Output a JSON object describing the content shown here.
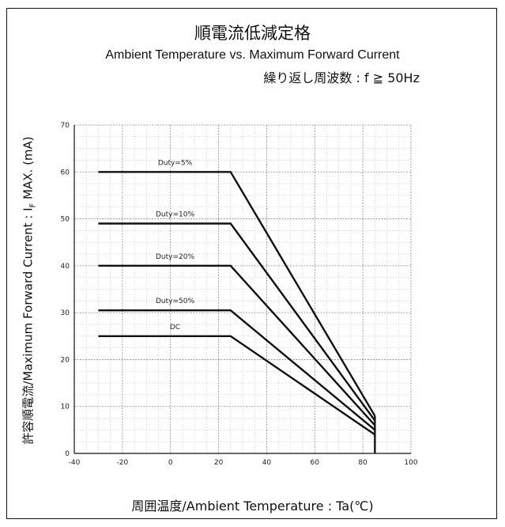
{
  "header": {
    "title_jp": "順電流低減定格",
    "title_en": "Ambient Temperature vs. Maximum Forward Current",
    "condition": "繰り返し周波数 : f ≧ 50Hz"
  },
  "chart_data": {
    "type": "line",
    "title": "順電流低減定格",
    "subtitle": "Ambient Temperature vs. Maximum Forward Current",
    "xlabel": "周囲温度/Ambient Temperature : Ta(℃)",
    "ylabel_prefix": "許容順電流/Maximum Forward Current : I",
    "ylabel_sub": "F",
    "ylabel_suffix": " MAX. (mA)",
    "xlim": [
      -40,
      100
    ],
    "ylim": [
      0,
      70
    ],
    "x_ticks": [
      -40,
      -20,
      0,
      20,
      40,
      60,
      80,
      100
    ],
    "y_ticks": [
      0,
      10,
      20,
      30,
      40,
      50,
      60,
      70
    ],
    "grid": true,
    "series": [
      {
        "name": "Duty=5%",
        "x": [
          -30,
          25,
          85
        ],
        "y": [
          60,
          60,
          8
        ]
      },
      {
        "name": "Duty=10%",
        "x": [
          -30,
          25,
          85
        ],
        "y": [
          49,
          49,
          7
        ]
      },
      {
        "name": "Duty=20%",
        "x": [
          -30,
          25,
          85
        ],
        "y": [
          40,
          40,
          6
        ]
      },
      {
        "name": "Duty=50%",
        "x": [
          -30,
          25,
          85
        ],
        "y": [
          30.5,
          30.5,
          5
        ]
      },
      {
        "name": "DC",
        "x": [
          -30,
          25,
          85
        ],
        "y": [
          25,
          25,
          4
        ]
      }
    ]
  }
}
